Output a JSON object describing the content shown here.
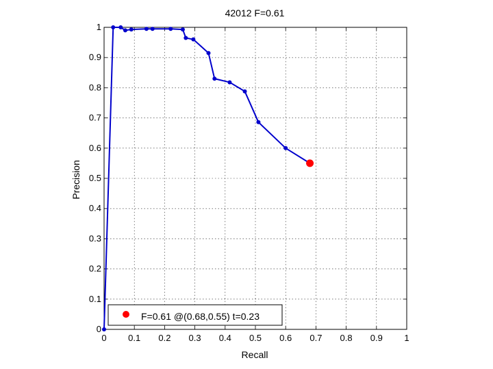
{
  "chart_data": {
    "type": "line",
    "title": "42012 F=0.61",
    "xlabel": "Recall",
    "ylabel": "Precision",
    "xlim": [
      0,
      1
    ],
    "ylim": [
      0,
      1
    ],
    "x_ticks": [
      "0",
      "0.1",
      "0.2",
      "0.3",
      "0.4",
      "0.5",
      "0.6",
      "0.7",
      "0.8",
      "0.9",
      "1"
    ],
    "y_ticks": [
      "0",
      "0.1",
      "0.2",
      "0.3",
      "0.4",
      "0.5",
      "0.6",
      "0.7",
      "0.8",
      "0.9",
      "1"
    ],
    "grid": true,
    "series": [
      {
        "color": "#0000cc",
        "points": [
          {
            "x": 0.0,
            "y": 0.0
          },
          {
            "x": 0.03,
            "y": 1.0
          },
          {
            "x": 0.055,
            "y": 1.0
          },
          {
            "x": 0.07,
            "y": 0.99
          },
          {
            "x": 0.09,
            "y": 0.993
          },
          {
            "x": 0.14,
            "y": 0.995
          },
          {
            "x": 0.16,
            "y": 0.995
          },
          {
            "x": 0.22,
            "y": 0.995
          },
          {
            "x": 0.26,
            "y": 0.993
          },
          {
            "x": 0.27,
            "y": 0.965
          },
          {
            "x": 0.295,
            "y": 0.96
          },
          {
            "x": 0.345,
            "y": 0.915
          },
          {
            "x": 0.365,
            "y": 0.83
          },
          {
            "x": 0.415,
            "y": 0.818
          },
          {
            "x": 0.465,
            "y": 0.788
          },
          {
            "x": 0.51,
            "y": 0.686
          },
          {
            "x": 0.6,
            "y": 0.6
          },
          {
            "x": 0.68,
            "y": 0.55
          }
        ]
      }
    ],
    "highlight": {
      "x": 0.68,
      "y": 0.55,
      "color": "#ff0000"
    },
    "legend": {
      "position": "bottom-left",
      "entries": [
        {
          "label": "F=0.61 @(0.68,0.55) t=0.23",
          "color": "#ff0000"
        }
      ]
    }
  }
}
